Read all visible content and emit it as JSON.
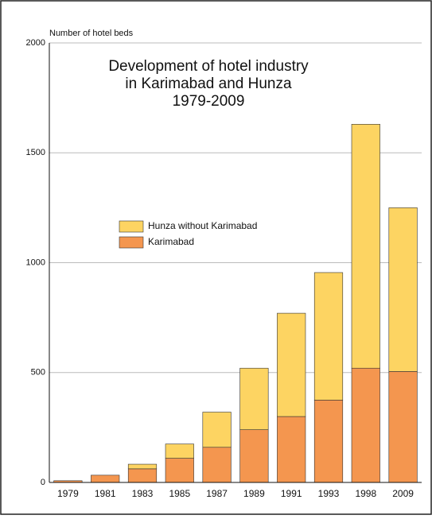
{
  "chart_data": {
    "type": "stacked-bar",
    "title": "Development of hotel industry",
    "subtitle": [
      "in Karimabad and Hunza",
      "1979-2009"
    ],
    "y_axis_label": "Number of hotel beds",
    "categories": [
      "1979",
      "1981",
      "1983",
      "1985",
      "1987",
      "1989",
      "1991",
      "1993",
      "1998",
      "2009"
    ],
    "series": [
      {
        "name": "Karimabad",
        "color": "#f4964f",
        "values": [
          8,
          33,
          62,
          110,
          160,
          240,
          300,
          375,
          520,
          505
        ]
      },
      {
        "name": "Hunza without Karimabad",
        "color": "#fdd462",
        "values": [
          0,
          0,
          21,
          65,
          160,
          280,
          470,
          580,
          1110,
          745
        ]
      }
    ],
    "ylim": [
      0,
      2000
    ],
    "yticks": [
      0,
      500,
      1000,
      1500,
      2000
    ],
    "grid": true
  }
}
